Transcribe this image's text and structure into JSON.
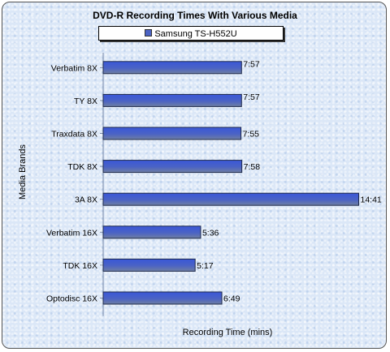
{
  "chart_data": {
    "type": "bar",
    "orientation": "horizontal",
    "title": "DVD-R Recording Times With Various Media",
    "xlabel": "Recording Time (mins)",
    "ylabel": "Media Brands",
    "legend_position": "top",
    "grid": false,
    "xlim": [
      0,
      15.5
    ],
    "categories": [
      "Verbatim 8X",
      "TY 8X",
      "Traxdata 8X",
      "TDK 8X",
      "3A 8X",
      "Verbatim 16X",
      "TDK 16X",
      "Optodisc 16X"
    ],
    "series": [
      {
        "name": "Samsung TS-H552U",
        "color": "#4b63c4",
        "values": [
          7.95,
          7.95,
          7.917,
          7.967,
          14.683,
          5.6,
          5.283,
          6.817
        ],
        "data_labels": [
          "7:57",
          "7:57",
          "7:55",
          "7:58",
          "14:41",
          "5:36",
          "5:17",
          "6:49"
        ]
      }
    ]
  }
}
